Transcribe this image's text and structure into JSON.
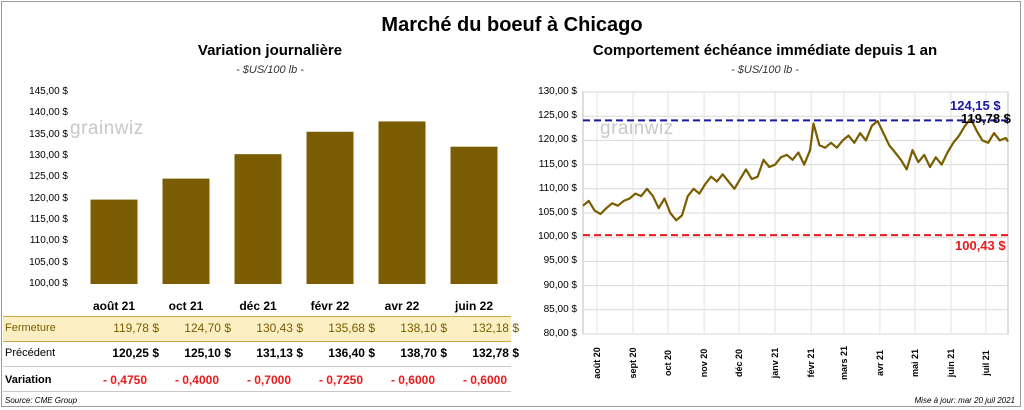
{
  "title": "Marché du boeuf à Chicago",
  "left_panel": {
    "title": "Variation journalière",
    "subtitle": "- $US/100 lb -"
  },
  "right_panel": {
    "title": "Comportement échéance immédiate depuis 1 an",
    "subtitle": "- $US/100 lb -"
  },
  "watermark": "grainwiz",
  "table": {
    "row_labels": [
      "Fermeture",
      "Précédent",
      "Variation"
    ],
    "fermeture": [
      "119,78 $",
      "124,70 $",
      "130,43 $",
      "135,68 $",
      "138,10 $",
      "132,18 $"
    ],
    "precedent": [
      "120,25 $",
      "125,10 $",
      "131,13 $",
      "136,40 $",
      "138,70 $",
      "132,78 $"
    ],
    "variation": [
      "- 0,4750",
      "- 0,4000",
      "- 0,7000",
      "- 0,7250",
      "- 0,6000",
      "- 0,6000"
    ]
  },
  "footer": {
    "source": "Source: CME Group",
    "update": "Mise à jour: mar 20 juil 2021"
  },
  "colors": {
    "bar": "#7a5d00",
    "line": "#7a5d00",
    "highlight_row": "#fcefc4",
    "high_line": "#1a1aa6",
    "low_line": "#e61b1b",
    "negative_text": "#e61b1b"
  },
  "chart_data": [
    {
      "type": "bar",
      "title": "Variation journalière",
      "subtitle": "- $US/100 lb -",
      "categories": [
        "août 21",
        "oct 21",
        "déc 21",
        "févr 22",
        "avr 22",
        "juin 22"
      ],
      "values": [
        119.78,
        124.7,
        130.43,
        135.68,
        138.1,
        132.18
      ],
      "ylim": [
        100,
        145
      ],
      "yticks": [
        "100,00 $",
        "105,00 $",
        "110,00 $",
        "115,00 $",
        "120,00 $",
        "125,00 $",
        "130,00 $",
        "135,00 $",
        "140,00 $",
        "145,00 $"
      ],
      "grid": false,
      "legend": "none"
    },
    {
      "type": "line",
      "title": "Comportement échéance immédiate depuis 1 an",
      "subtitle": "- $US/100 lb -",
      "ylim": [
        80,
        130
      ],
      "yticks": [
        "80,00 $",
        "85,00 $",
        "90,00 $",
        "95,00 $",
        "100,00 $",
        "105,00 $",
        "110,00 $",
        "115,00 $",
        "120,00 $",
        "125,00 $",
        "130,00 $"
      ],
      "xticks": [
        "août 20",
        "sept 20",
        "oct 20",
        "nov 20",
        "déc 20",
        "janv 21",
        "févr 21",
        "mars 21",
        "avr 21",
        "mai 21",
        "juin 21",
        "juil 21"
      ],
      "x_range": [
        "2020-07-20",
        "2021-07-20"
      ],
      "grid": true,
      "series": [
        {
          "x": [
            "2020-07-20",
            "2020-07-25",
            "2020-07-30",
            "2020-08-04",
            "2020-08-09",
            "2020-08-14",
            "2020-08-19",
            "2020-08-24",
            "2020-08-29",
            "2020-09-03",
            "2020-09-08",
            "2020-09-13",
            "2020-09-18",
            "2020-09-23",
            "2020-09-28",
            "2020-10-03",
            "2020-10-08",
            "2020-10-13",
            "2020-10-18",
            "2020-10-23",
            "2020-10-28",
            "2020-11-02",
            "2020-11-07",
            "2020-11-12",
            "2020-11-17",
            "2020-11-22",
            "2020-11-27",
            "2020-12-02",
            "2020-12-07",
            "2020-12-12",
            "2020-12-17",
            "2020-12-22",
            "2020-12-27",
            "2021-01-01",
            "2021-01-06",
            "2021-01-11",
            "2021-01-16",
            "2021-01-21",
            "2021-01-26",
            "2021-01-31",
            "2021-02-03",
            "2021-02-08",
            "2021-02-13",
            "2021-02-18",
            "2021-02-23",
            "2021-02-28",
            "2021-03-05",
            "2021-03-10",
            "2021-03-15",
            "2021-03-20",
            "2021-03-25",
            "2021-03-30",
            "2021-04-04",
            "2021-04-09",
            "2021-04-14",
            "2021-04-19",
            "2021-04-24",
            "2021-04-29",
            "2021-05-04",
            "2021-05-09",
            "2021-05-14",
            "2021-05-19",
            "2021-05-24",
            "2021-05-29",
            "2021-06-03",
            "2021-06-08",
            "2021-06-13",
            "2021-06-18",
            "2021-06-23",
            "2021-06-28",
            "2021-07-03",
            "2021-07-08",
            "2021-07-13",
            "2021-07-18",
            "2021-07-20"
          ],
          "values": [
            106.5,
            107.5,
            105.5,
            104.8,
            106.0,
            107.0,
            106.5,
            107.5,
            108.0,
            109.0,
            108.5,
            110.0,
            108.5,
            106.0,
            108.0,
            105.0,
            103.5,
            104.5,
            108.5,
            110.0,
            109.0,
            111.0,
            112.5,
            111.5,
            113.0,
            111.5,
            110.0,
            112.0,
            114.0,
            112.0,
            112.5,
            116.0,
            114.5,
            115.0,
            116.5,
            117.0,
            116.0,
            117.5,
            115.0,
            118.0,
            123.5,
            119.0,
            118.5,
            119.5,
            118.5,
            120.0,
            121.0,
            119.5,
            121.5,
            120.0,
            123.0,
            124.0,
            121.5,
            119.0,
            117.5,
            116.0,
            114.0,
            118.0,
            115.5,
            117.0,
            114.5,
            116.5,
            115.0,
            117.5,
            119.5,
            121.0,
            123.0,
            124.5,
            122.0,
            120.0,
            119.5,
            121.5,
            120.0,
            120.5,
            119.78
          ]
        }
      ],
      "annotations": [
        {
          "label": "124,15 $",
          "value": 124.15,
          "style": "dashed",
          "color": "#1a1aa6"
        },
        {
          "label": "100,43 $",
          "value": 100.43,
          "style": "dashed",
          "color": "#e61b1b"
        },
        {
          "label": "119,78 $",
          "value": 119.78
        }
      ]
    }
  ]
}
